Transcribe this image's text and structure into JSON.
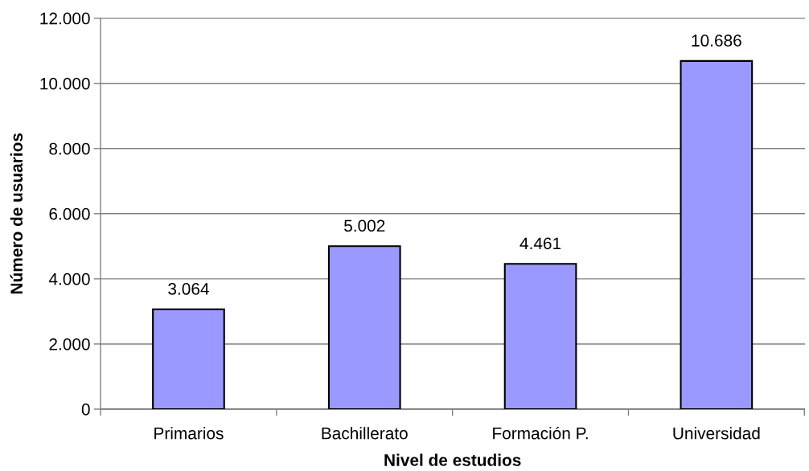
{
  "chart_data": {
    "type": "bar",
    "xlabel": "Nivel de estudios",
    "ylabel": "Número de usuarios",
    "categories": [
      "Primarios",
      "Bachillerato",
      "Formación P.",
      "Universidad"
    ],
    "series": [
      {
        "color": "#9999ff",
        "values": [
          3064,
          5002,
          4461,
          10686
        ]
      }
    ],
    "value_labels": [
      "3.064",
      "5.002",
      "4.461",
      "10.686"
    ],
    "ylim": [
      0,
      12000
    ],
    "yticks": [
      0,
      {
        "value": 2000,
        "label": "2.000"
      },
      {
        "value": 4000,
        "label": "4.000"
      },
      {
        "value": 6000,
        "label": "6.000"
      },
      {
        "value": 8000,
        "label": "8.000"
      },
      {
        "value": 10000,
        "label": "10.000"
      },
      {
        "value": 12000,
        "label": "12.000"
      }
    ],
    "grid": "y"
  }
}
